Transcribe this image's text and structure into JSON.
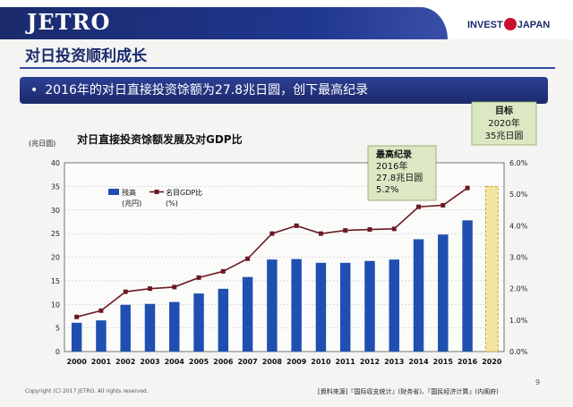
{
  "header": {
    "logo": "JETRO",
    "invest_left": "INVEST",
    "invest_right": "JAPAN"
  },
  "slide_title": "对日投资顺利成长",
  "banner_text": "2016年的对日直接投资馀额为27.8兆日圆，创下最高纪录",
  "colors": {
    "bar": "#1f4fb0",
    "line": "#6b1a22",
    "target_fill": "#f3e6a0",
    "callout_fill": "#dce8c4",
    "accent": "#1a2a6c"
  },
  "chart_data": {
    "type": "bar",
    "title": "对日直接投资馀额发展及对GDP比",
    "unit_left": "(兆日圆)",
    "categories": [
      "2000",
      "2001",
      "2002",
      "2003",
      "2004",
      "2005",
      "2006",
      "2007",
      "2008",
      "2009",
      "2010",
      "2011",
      "2012",
      "2013",
      "2014",
      "2015",
      "2016",
      "2020"
    ],
    "series": [
      {
        "name": "残高",
        "sub": "(兆円)",
        "type": "bar",
        "axis": "left",
        "values": [
          6.1,
          6.6,
          9.9,
          10.1,
          10.5,
          12.3,
          13.3,
          15.8,
          19.5,
          19.6,
          18.8,
          18.8,
          19.2,
          19.5,
          23.8,
          24.8,
          27.8,
          null
        ]
      },
      {
        "name": "名目GDP比",
        "sub": "(%)",
        "type": "line",
        "axis": "right",
        "values": [
          1.1,
          1.3,
          1.9,
          2.0,
          2.05,
          2.35,
          2.55,
          2.95,
          3.75,
          4.0,
          3.75,
          3.85,
          3.88,
          3.9,
          4.6,
          4.65,
          5.2,
          null
        ]
      }
    ],
    "target": {
      "year": "2020",
      "value": 35
    },
    "ylim": [
      0,
      40
    ],
    "yticks": [
      0,
      5,
      10,
      15,
      20,
      25,
      30,
      35,
      40
    ],
    "y2lim": [
      0,
      6.0
    ],
    "y2ticks": [
      "0.0%",
      "1.0%",
      "2.0%",
      "3.0%",
      "4.0%",
      "5.0%",
      "6.0%"
    ],
    "grid": true,
    "legend_placement": "top-left",
    "annotations": [
      {
        "id": "record",
        "lines": [
          "最高纪录",
          "2016年",
          "27.8兆日圆",
          "5.2%"
        ]
      },
      {
        "id": "target",
        "lines": [
          "目标",
          "2020年",
          "35兆日圆"
        ]
      }
    ]
  },
  "footer": {
    "copyright": "Copyright (C) 2017 JETRO. All rights reserved.",
    "source": "[資料來源]『国际収支统计』(財务省)、『国民经济计算』(内阁府)",
    "page": "9"
  }
}
